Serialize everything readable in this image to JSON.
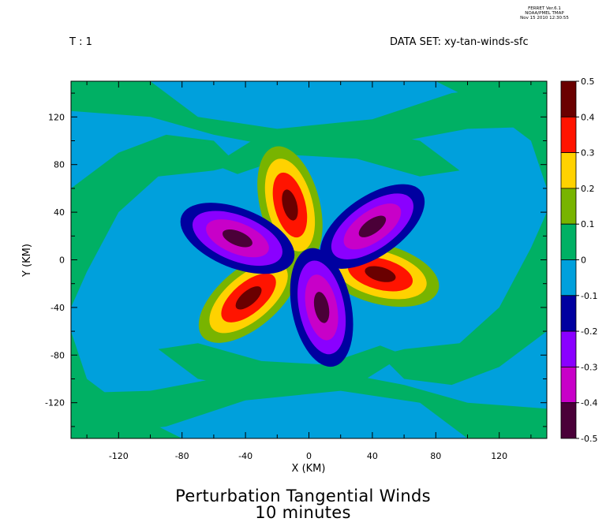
{
  "header": {
    "stamp_line1": "FERRET  Ver.6.1",
    "stamp_line2": "NOAA/PMEL TMAP",
    "stamp_line3": "Nov 15 2010 12:30:55",
    "time_label": "T : 1",
    "dataset_label": "DATA SET: xy-tan-winds-sfc"
  },
  "colors": {
    "levels": [
      "#4a0038",
      "#c800c8",
      "#8a00ff",
      "#0000a0",
      "#00a0dc",
      "#00b064",
      "#78b400",
      "#ffd200",
      "#ff1400",
      "#6a0000"
    ],
    "background_field": "#00a0dc"
  },
  "chart_data": {
    "type": "heatmap",
    "subtype": "filled-contour",
    "title_line1": "Perturbation Tangential Winds",
    "title_line2": "10 minutes",
    "xlabel": "X (KM)",
    "ylabel": "Y (KM)",
    "xlim": [
      -150,
      150
    ],
    "ylim": [
      -150,
      150
    ],
    "x_ticks": [
      -120,
      -80,
      -40,
      0,
      40,
      80,
      120
    ],
    "y_ticks": [
      120,
      80,
      40,
      0,
      -40,
      -80,
      -120
    ],
    "colorbar_levels": [
      0.5,
      0.4,
      0.3,
      0.2,
      0.1,
      0,
      -0.1,
      -0.2,
      -0.3,
      -0.4,
      -0.5
    ],
    "lobes": [
      {
        "center_x": -12,
        "center_y": 46,
        "peak": 0.45,
        "sign": "positive"
      },
      {
        "center_x": 45,
        "center_y": -12,
        "peak": 0.45,
        "sign": "positive"
      },
      {
        "center_x": -38,
        "center_y": -32,
        "peak": 0.45,
        "sign": "positive"
      },
      {
        "center_x": 40,
        "center_y": 28,
        "peak": -0.45,
        "sign": "negative"
      },
      {
        "center_x": -45,
        "center_y": 18,
        "peak": -0.45,
        "sign": "negative"
      },
      {
        "center_x": 8,
        "center_y": -40,
        "peak": -0.45,
        "sign": "negative"
      }
    ]
  }
}
